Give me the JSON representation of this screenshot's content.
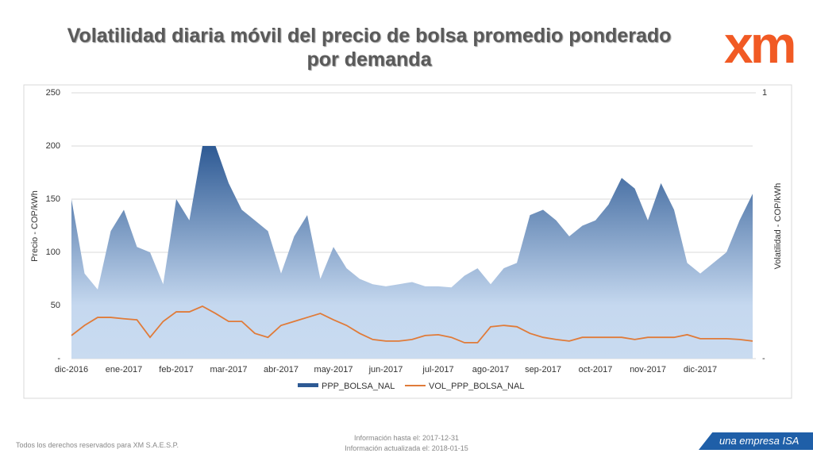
{
  "title_line1": "Volatilidad diaria móvil del precio de bolsa promedio ponderado",
  "title_line2": "por demanda",
  "logo": "xm",
  "footer": {
    "rights": "Todos los derechos reservados para XM S.A.E.S.P.",
    "info_until": "Información hasta el: 2017-12-31",
    "info_updated": "Información actualizada el: 2018-01-15",
    "brand": "una empresa ISA"
  },
  "chart_data": {
    "type": "area-line",
    "ylabel": "Precio - COP/kWh",
    "y2label": "Volatilidad - COP/kWh",
    "categories": [
      "dic-2016",
      null,
      null,
      null,
      "ene-2017",
      null,
      null,
      null,
      "feb-2017",
      null,
      null,
      null,
      "mar-2017",
      null,
      null,
      null,
      "abr-2017",
      null,
      null,
      null,
      "may-2017",
      null,
      null,
      null,
      "jun-2017",
      null,
      null,
      null,
      "jul-2017",
      null,
      null,
      null,
      "ago-2017",
      null,
      null,
      null,
      "sep-2017",
      null,
      null,
      null,
      "oct-2017",
      null,
      null,
      null,
      "nov-2017",
      null,
      null,
      null,
      "dic-2017",
      null,
      null,
      null,
      null
    ],
    "series": [
      {
        "name": "PPP_BOLSA_NAL",
        "color": "#2e5a94",
        "values": [
          150,
          80,
          65,
          120,
          140,
          105,
          100,
          70,
          150,
          130,
          200,
          200,
          165,
          140,
          130,
          120,
          80,
          115,
          135,
          75,
          105,
          85,
          75,
          70,
          68,
          70,
          72,
          68,
          68,
          67,
          78,
          85,
          70,
          85,
          90,
          135,
          140,
          130,
          115,
          125,
          130,
          145,
          170,
          160,
          130,
          165,
          140,
          90,
          80,
          90,
          100,
          130,
          155
        ]
      },
      {
        "name": "VOL_PPP_BOLSA_NAL",
        "color": "#e07b39",
        "axis": "y2",
        "values": [
          0.087,
          0.125,
          0.155,
          0.155,
          0.15,
          0.146,
          0.08,
          0.14,
          0.176,
          0.176,
          0.197,
          0.17,
          0.14,
          0.14,
          0.095,
          0.08,
          0.125,
          0.14,
          0.155,
          0.17,
          0.146,
          0.125,
          0.095,
          0.072,
          0.066,
          0.066,
          0.072,
          0.087,
          0.09,
          0.08,
          0.06,
          0.06,
          0.12,
          0.125,
          0.12,
          0.095,
          0.08,
          0.072,
          0.066,
          0.08,
          0.08,
          0.08,
          0.08,
          0.072,
          0.08,
          0.08,
          0.08,
          0.09,
          0.075,
          0.075,
          0.075,
          0.072,
          0.066
        ]
      }
    ],
    "ylim": [
      0,
      250
    ],
    "yticks": [
      {
        "value": 0,
        "label": "-"
      },
      50,
      100,
      150,
      200,
      250
    ],
    "y2lim": [
      0,
      1
    ],
    "y2ticks": [
      {
        "value": 0,
        "label": "-"
      },
      1
    ],
    "grid": true
  }
}
